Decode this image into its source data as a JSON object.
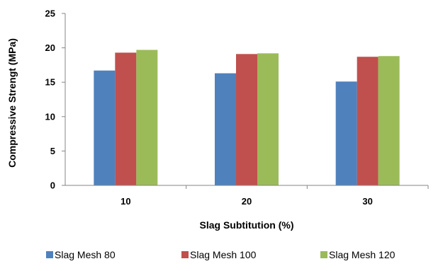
{
  "chart_data": {
    "type": "bar",
    "categories": [
      "10",
      "20",
      "30"
    ],
    "series": [
      {
        "name": "Slag Mesh 80",
        "color": "#4F81BD",
        "values": [
          16.7,
          16.3,
          15.1
        ]
      },
      {
        "name": "Slag Mesh 100",
        "color": "#C0504D",
        "values": [
          19.3,
          19.1,
          18.7
        ]
      },
      {
        "name": "Slag Mesh 120",
        "color": "#9BBB59",
        "values": [
          19.7,
          19.2,
          18.8
        ]
      }
    ],
    "xlabel": "Slag Subtitution (%)",
    "ylabel": "Compressive Strengt  (MPa)",
    "ylim": [
      0,
      25
    ],
    "yticks": [
      0,
      5,
      10,
      15,
      20,
      25
    ],
    "grid": false,
    "legend_position": "bottom"
  }
}
